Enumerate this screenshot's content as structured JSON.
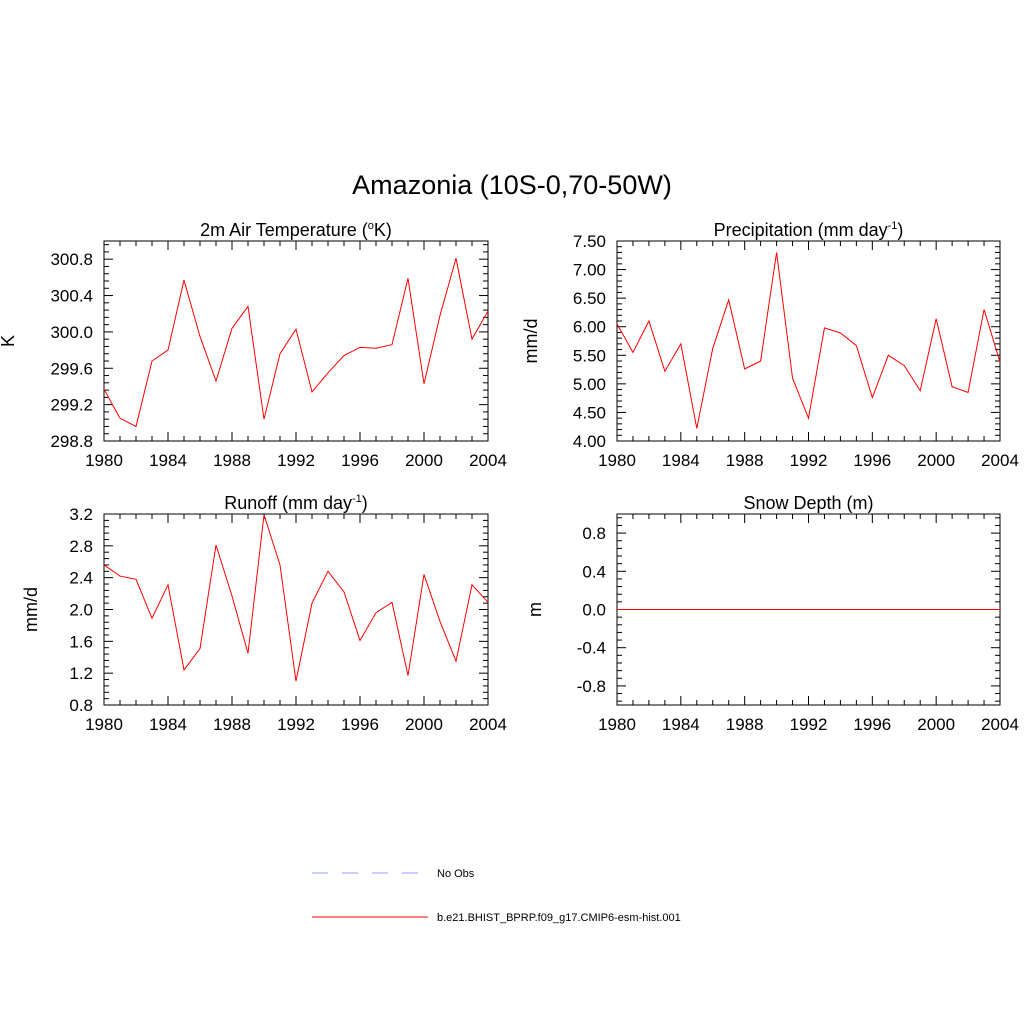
{
  "title": "Amazonia (10S-0,70-50W)",
  "colors": {
    "model": "#ff0000",
    "obs": "#9999ff"
  },
  "legend": [
    {
      "label": "No Obs",
      "style": "dashed",
      "color": "#9999ff"
    },
    {
      "label": "b.e21.BHIST_BPRP.f09_g17.CMIP6-esm-hist.001",
      "style": "solid",
      "color": "#ff0000"
    }
  ],
  "chart_data": [
    {
      "type": "line",
      "title": "2m Air Temperature (°K)",
      "title_parts": [
        "2m Air Temperature (",
        "o",
        "K)"
      ],
      "title_sup": "o",
      "ylabel": "K",
      "xlim": [
        1980,
        2004
      ],
      "ylim": [
        298.8,
        301.0
      ],
      "xticks": [
        "1980",
        "1984",
        "1988",
        "1992",
        "1996",
        "2000",
        "2004"
      ],
      "yticks": [
        "298.8",
        "299.2",
        "299.6",
        "300.0",
        "300.4",
        "300.8"
      ],
      "x": [
        1980,
        1981,
        1982,
        1983,
        1984,
        1985,
        1986,
        1987,
        1988,
        1989,
        1990,
        1991,
        1992,
        1993,
        1994,
        1995,
        1996,
        1997,
        1998,
        1999,
        2000,
        2001,
        2002,
        2003,
        2004
      ],
      "series": [
        {
          "name": "b.e21.BHIST_BPRP.f09_g17.CMIP6-esm-hist.001",
          "values": [
            299.37,
            299.05,
            298.96,
            299.68,
            299.8,
            300.57,
            299.95,
            299.46,
            300.04,
            300.28,
            299.04,
            299.76,
            300.03,
            299.34,
            299.55,
            299.74,
            299.83,
            299.82,
            299.86,
            300.59,
            299.43,
            300.18,
            300.81,
            299.92,
            300.23
          ]
        }
      ]
    },
    {
      "type": "line",
      "title": "Precipitation (mm day-1)",
      "title_parts": [
        "Precipitation (mm day",
        "-1",
        ")"
      ],
      "title_sup": "-1",
      "ylabel": "mm/d",
      "xlim": [
        1980,
        2004
      ],
      "ylim": [
        4.0,
        7.5
      ],
      "xticks": [
        "1980",
        "1984",
        "1988",
        "1992",
        "1996",
        "2000",
        "2004"
      ],
      "yticks": [
        "4.00",
        "4.50",
        "5.00",
        "5.50",
        "6.00",
        "6.50",
        "7.00",
        "7.50"
      ],
      "x": [
        1980,
        1981,
        1982,
        1983,
        1984,
        1985,
        1986,
        1987,
        1988,
        1989,
        1990,
        1991,
        1992,
        1993,
        1994,
        1995,
        1996,
        1997,
        1998,
        1999,
        2000,
        2001,
        2002,
        2003,
        2004
      ],
      "series": [
        {
          "name": "b.e21.BHIST_BPRP.f09_g17.CMIP6-esm-hist.001",
          "values": [
            6.05,
            5.55,
            6.1,
            5.22,
            5.7,
            4.22,
            5.62,
            6.47,
            5.26,
            5.4,
            7.3,
            5.1,
            4.4,
            5.98,
            5.89,
            5.67,
            4.76,
            5.5,
            5.32,
            4.88,
            6.14,
            4.95,
            4.85,
            6.3,
            5.38
          ]
        }
      ]
    },
    {
      "type": "line",
      "title": "Runoff (mm day-1)",
      "title_parts": [
        "Runoff (mm day",
        "-1",
        ")"
      ],
      "title_sup": "-1",
      "ylabel": "mm/d",
      "xlim": [
        1980,
        2004
      ],
      "ylim": [
        0.8,
        3.2
      ],
      "xticks": [
        "1980",
        "1984",
        "1988",
        "1992",
        "1996",
        "2000",
        "2004"
      ],
      "yticks": [
        "0.8",
        "1.2",
        "1.6",
        "2.0",
        "2.4",
        "2.8",
        "3.2"
      ],
      "x": [
        1980,
        1981,
        1982,
        1983,
        1984,
        1985,
        1986,
        1987,
        1988,
        1989,
        1990,
        1991,
        1992,
        1993,
        1994,
        1995,
        1996,
        1997,
        1998,
        1999,
        2000,
        2001,
        2002,
        2003,
        2004
      ],
      "series": [
        {
          "name": "b.e21.BHIST_BPRP.f09_g17.CMIP6-esm-hist.001",
          "values": [
            2.56,
            2.42,
            2.38,
            1.89,
            2.31,
            1.24,
            1.51,
            2.81,
            2.17,
            1.45,
            3.19,
            2.56,
            1.1,
            2.08,
            2.48,
            2.22,
            1.61,
            1.96,
            2.09,
            1.17,
            2.44,
            1.85,
            1.35,
            2.31,
            2.09
          ]
        }
      ]
    },
    {
      "type": "line",
      "title": "Snow Depth (m)",
      "title_parts": [
        "Snow Depth (m)",
        "",
        ""
      ],
      "title_sup": "",
      "ylabel": "m",
      "xlim": [
        1980,
        2004
      ],
      "ylim": [
        -1.0,
        1.0
      ],
      "xticks": [
        "1980",
        "1984",
        "1988",
        "1992",
        "1996",
        "2000",
        "2004"
      ],
      "yticks": [
        "-0.8",
        "-0.4",
        "0.0",
        "0.4",
        "0.8"
      ],
      "x": [
        1980,
        1981,
        1982,
        1983,
        1984,
        1985,
        1986,
        1987,
        1988,
        1989,
        1990,
        1991,
        1992,
        1993,
        1994,
        1995,
        1996,
        1997,
        1998,
        1999,
        2000,
        2001,
        2002,
        2003,
        2004
      ],
      "series": [
        {
          "name": "b.e21.BHIST_BPRP.f09_g17.CMIP6-esm-hist.001",
          "values": [
            0,
            0,
            0,
            0,
            0,
            0,
            0,
            0,
            0,
            0,
            0,
            0,
            0,
            0,
            0,
            0,
            0,
            0,
            0,
            0,
            0,
            0,
            0,
            0,
            0
          ]
        }
      ]
    }
  ]
}
